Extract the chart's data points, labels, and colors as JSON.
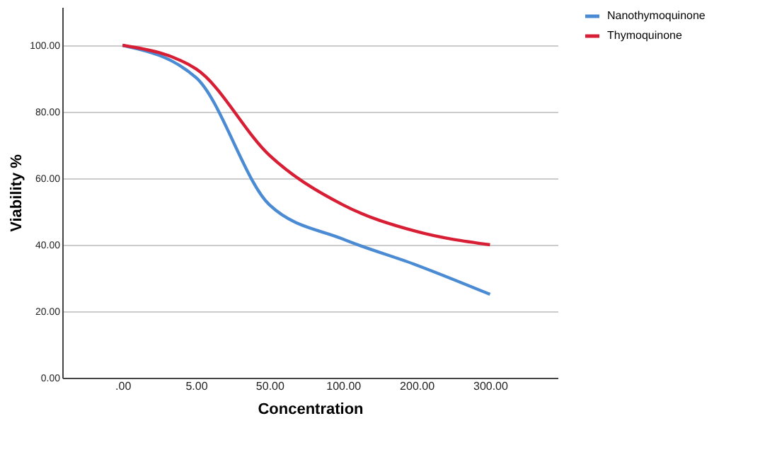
{
  "chart_data": {
    "type": "line",
    "xlabel": "Concentration",
    "ylabel": "Viability %",
    "categories": [
      ".00",
      "5.00",
      "50.00",
      "100.00",
      "200.00",
      "300.00"
    ],
    "series": [
      {
        "name": "Nanothymoquinone",
        "color": "#4a8bd4",
        "values": [
          100,
          90.3,
          52,
          41.7,
          33.9,
          25.1
        ]
      },
      {
        "name": "Thymoquinone",
        "color": "#d81e34",
        "values": [
          100,
          92.9,
          66.9,
          52,
          44,
          40
        ]
      }
    ],
    "ylim": [
      0,
      111.5
    ],
    "yticks": [
      {
        "value": 0,
        "label": "0.00"
      },
      {
        "value": 20,
        "label": "20.00"
      },
      {
        "value": 40,
        "label": "40.00"
      },
      {
        "value": 60,
        "label": "60.00"
      },
      {
        "value": 80,
        "label": "80.00"
      },
      {
        "value": 100,
        "label": "100.00"
      }
    ],
    "grid": "y",
    "legend": "top right",
    "marker": "none",
    "line_style": "solid"
  }
}
